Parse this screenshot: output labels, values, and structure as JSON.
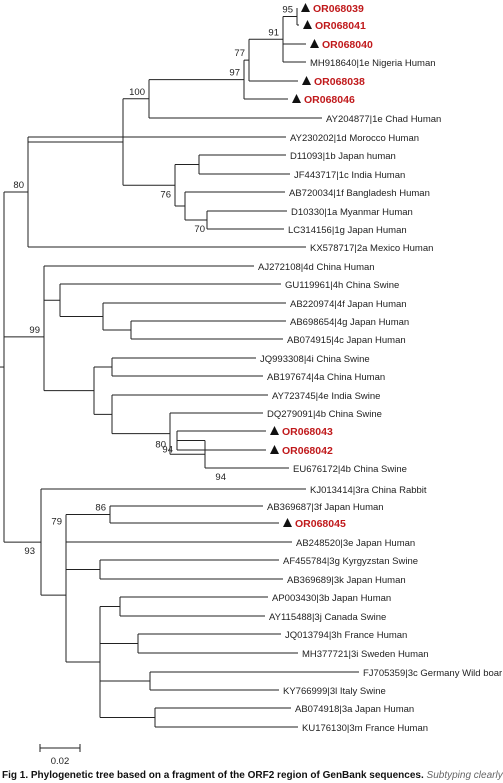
{
  "colors": {
    "branch": "#222222",
    "label": "#222222",
    "highlight": "#c0191b",
    "marker": "#111111"
  },
  "tree": {
    "taxa": [
      {
        "id": "t1",
        "label": "OR068039",
        "highlight": true,
        "marker": "triangle"
      },
      {
        "id": "t2",
        "label": "OR068041",
        "highlight": true,
        "marker": "triangle"
      },
      {
        "id": "t3",
        "label": "OR068040",
        "highlight": true,
        "marker": "triangle"
      },
      {
        "id": "t4",
        "label": "MH918640|1e Nigeria Human",
        "highlight": false
      },
      {
        "id": "t5",
        "label": "OR068038",
        "highlight": true,
        "marker": "triangle"
      },
      {
        "id": "t6",
        "label": "OR068046",
        "highlight": true,
        "marker": "triangle"
      },
      {
        "id": "t7",
        "label": "AY204877|1e Chad Human",
        "highlight": false
      },
      {
        "id": "t8",
        "label": "AY230202|1d Morocco Human",
        "highlight": false
      },
      {
        "id": "t9",
        "label": "D11093|1b Japan human",
        "highlight": false
      },
      {
        "id": "t10",
        "label": "JF443717|1c India Human",
        "highlight": false
      },
      {
        "id": "t11",
        "label": "AB720034|1f Bangladesh Human",
        "highlight": false
      },
      {
        "id": "t12",
        "label": "D10330|1a Myanmar Human",
        "highlight": false
      },
      {
        "id": "t13",
        "label": "LC314156|1g Japan Human",
        "highlight": false
      },
      {
        "id": "t14",
        "label": "KX578717|2a Mexico Human",
        "highlight": false
      },
      {
        "id": "t15",
        "label": "AJ272108|4d China Human",
        "highlight": false
      },
      {
        "id": "t16",
        "label": "GU119961|4h China Swine",
        "highlight": false
      },
      {
        "id": "t17",
        "label": "AB220974|4f Japan Human",
        "highlight": false
      },
      {
        "id": "t18",
        "label": "AB698654|4g Japan Human",
        "highlight": false
      },
      {
        "id": "t19",
        "label": "AB074915|4c Japan Human",
        "highlight": false
      },
      {
        "id": "t20",
        "label": "JQ993308|4i China Swine",
        "highlight": false
      },
      {
        "id": "t21",
        "label": "AB197674|4a China Human",
        "highlight": false
      },
      {
        "id": "t22",
        "label": "AY723745|4e India Swine",
        "highlight": false
      },
      {
        "id": "t23",
        "label": "DQ279091|4b China Swine",
        "highlight": false
      },
      {
        "id": "t24",
        "label": "OR068043",
        "highlight": true,
        "marker": "triangle"
      },
      {
        "id": "t25",
        "label": "OR068042",
        "highlight": true,
        "marker": "triangle"
      },
      {
        "id": "t26",
        "label": "EU676172|4b China Swine",
        "highlight": false
      },
      {
        "id": "t27",
        "label": "KJ013414|3ra China Rabbit",
        "highlight": false
      },
      {
        "id": "t28",
        "label": "AB369687|3f Japan Human",
        "highlight": false
      },
      {
        "id": "t29",
        "label": "OR068045",
        "highlight": true,
        "marker": "triangle"
      },
      {
        "id": "t30",
        "label": "AB248520|3e Japan Human",
        "highlight": false
      },
      {
        "id": "t31",
        "label": "AF455784|3g Kyrgyzstan Swine",
        "highlight": false
      },
      {
        "id": "t32",
        "label": "AB369689|3k Japan Human",
        "highlight": false
      },
      {
        "id": "t33",
        "label": "AP003430|3b Japan Human",
        "highlight": false
      },
      {
        "id": "t34",
        "label": "AY115488|3j Canada Swine",
        "highlight": false
      },
      {
        "id": "t35",
        "label": "JQ013794|3h France Human",
        "highlight": false
      },
      {
        "id": "t36",
        "label": "MH377721|3i Sweden Human",
        "highlight": false
      },
      {
        "id": "t37",
        "label": "FJ705359|3c Germany Wild boar",
        "highlight": false
      },
      {
        "id": "t38",
        "label": "KY766999|3l Italy Swine",
        "highlight": false
      },
      {
        "id": "t39",
        "label": "AB074918|3a Japan Human",
        "highlight": false
      },
      {
        "id": "t40",
        "label": "KU176130|3m France Human",
        "highlight": false
      }
    ],
    "bootstrap": [
      {
        "node": "n1",
        "value": "95"
      },
      {
        "node": "n2",
        "value": "91"
      },
      {
        "node": "n3",
        "value": "77"
      },
      {
        "node": "n4",
        "value": "97"
      },
      {
        "node": "n5",
        "value": "100"
      },
      {
        "node": "n6",
        "value": "76"
      },
      {
        "node": "n7",
        "value": "70"
      },
      {
        "node": "n8",
        "value": "80"
      },
      {
        "node": "n9",
        "value": "99"
      },
      {
        "node": "n10",
        "value": "94"
      },
      {
        "node": "n11",
        "value": "80"
      },
      {
        "node": "n12",
        "value": "94"
      },
      {
        "node": "n13",
        "value": "86"
      },
      {
        "node": "n14",
        "value": "79"
      },
      {
        "node": "n15",
        "value": "93"
      }
    ],
    "scale_bar_label": "0.02"
  },
  "caption": {
    "bold": "Fig 1. Phylogenetic tree based on a fragment of the ORF2 region of GenBank sequences.",
    "italic": "Subtyping clearly"
  }
}
